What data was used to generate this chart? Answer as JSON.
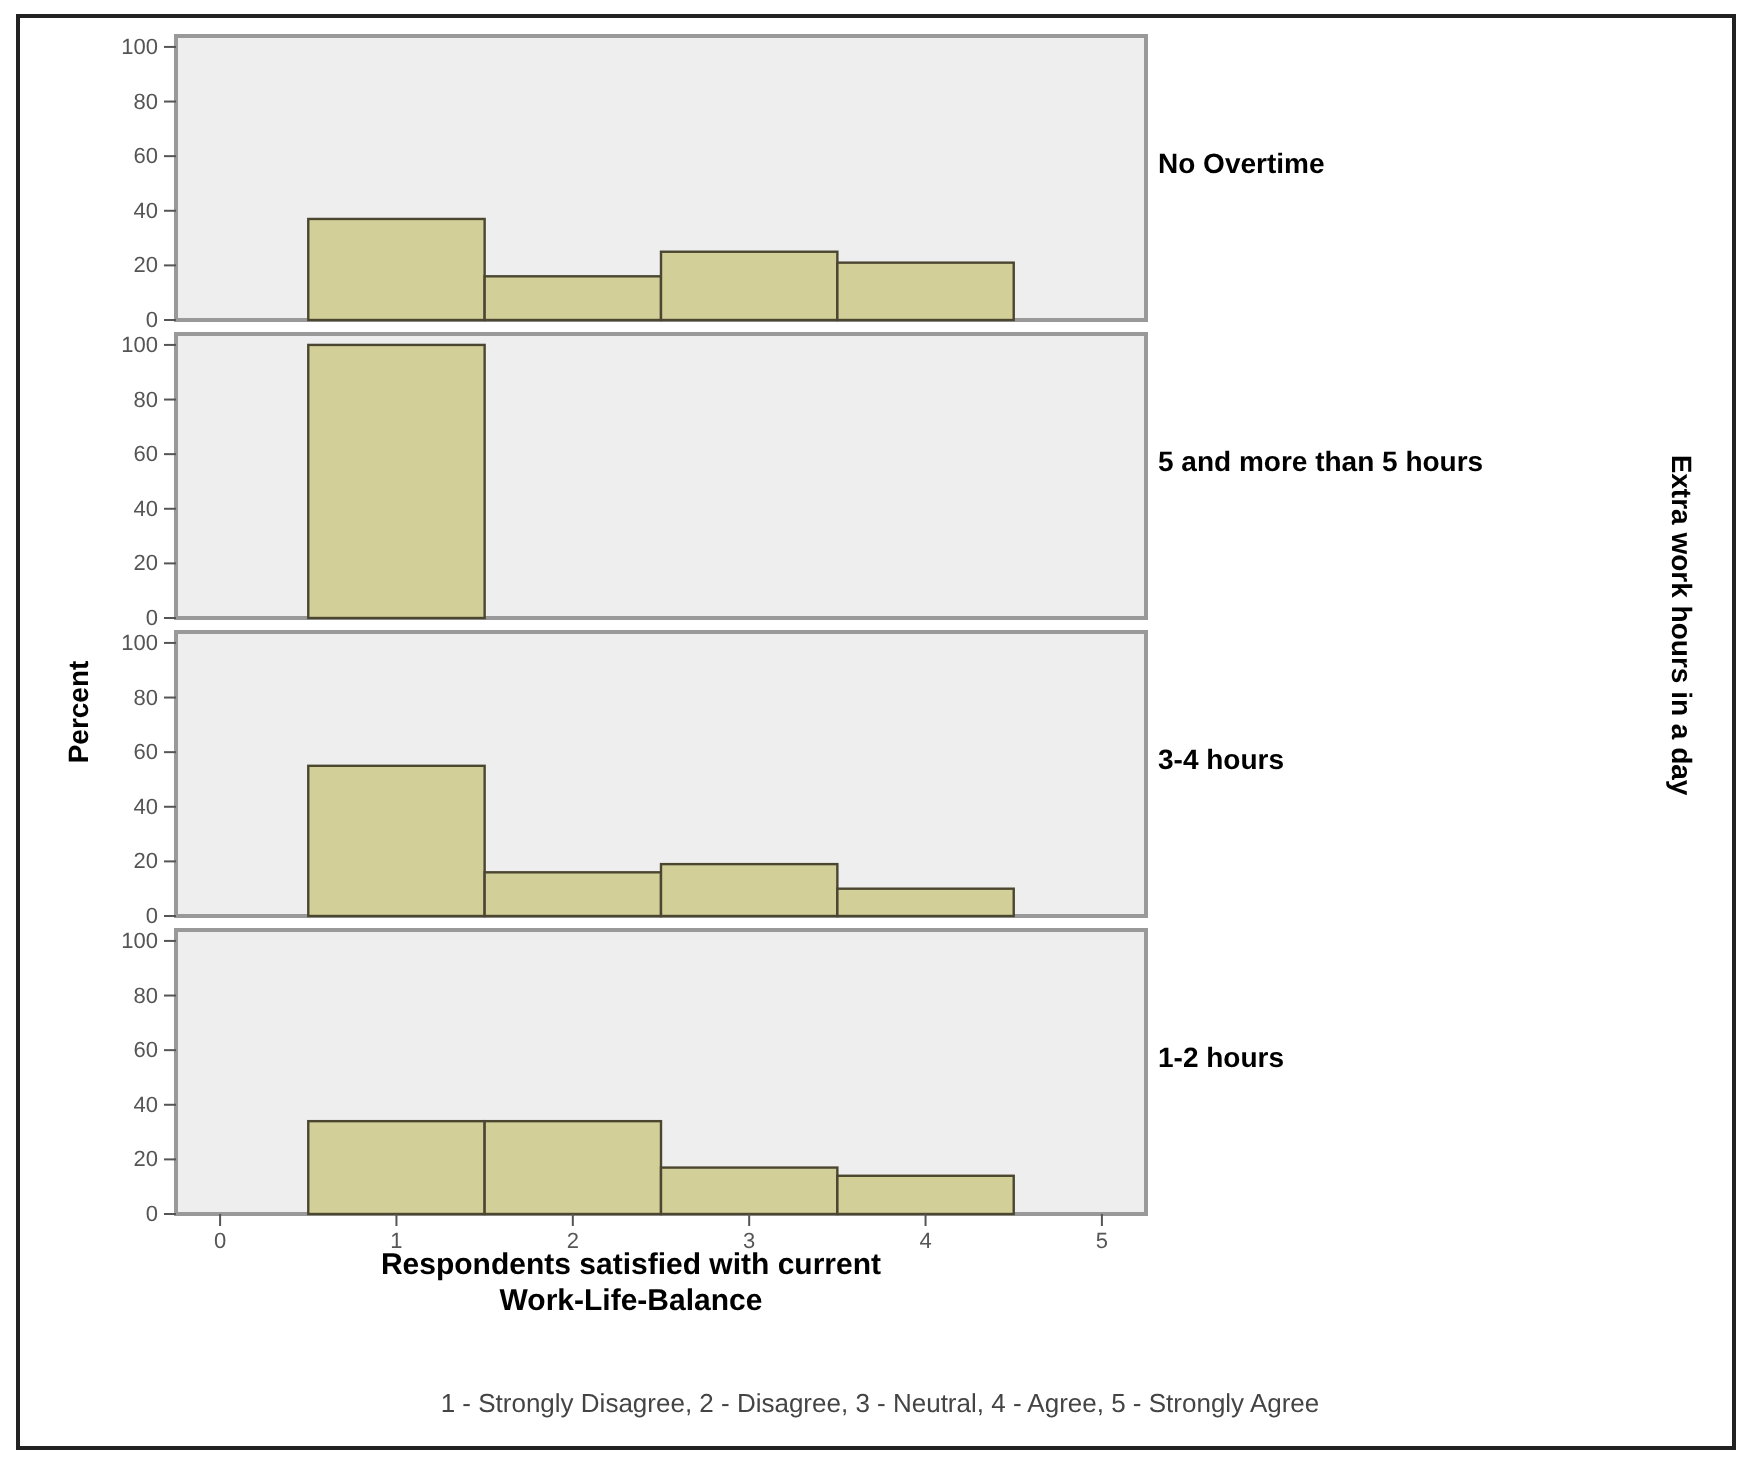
{
  "chart_data": [
    {
      "type": "histogram",
      "title": "No Overtime",
      "bins": [
        0.5,
        1.5,
        2.5,
        3.5,
        4.5
      ],
      "values": [
        37,
        16,
        25,
        21
      ],
      "color": "#d3cf98",
      "xlim": [
        -0.25,
        5.25
      ],
      "ylim": [
        0,
        104
      ],
      "yticks": [
        0,
        20,
        40,
        60,
        80,
        100
      ],
      "tick_labels": "y",
      "grid": false
    },
    {
      "type": "histogram",
      "title": "5 and more than 5 hours",
      "y2label": "Extra work hours in a day",
      "bins": [
        0.5,
        1.5
      ],
      "values": [
        100
      ],
      "color": "#d3cf98",
      "xlim": [
        -0.25,
        5.25
      ],
      "ylim": [
        0,
        104
      ],
      "yticks": [
        0,
        20,
        40,
        60,
        80,
        100
      ],
      "tick_labels": "y",
      "grid": false
    },
    {
      "type": "histogram",
      "title": "3-4 hours",
      "ylabel": "Percent",
      "bins": [
        0.5,
        1.5,
        2.5,
        3.5,
        4.5
      ],
      "values": [
        55,
        16,
        19,
        10
      ],
      "color": "#d3cf98",
      "xlim": [
        -0.25,
        5.25
      ],
      "ylim": [
        0,
        104
      ],
      "yticks": [
        0,
        20,
        40,
        60,
        80,
        100
      ],
      "tick_labels": "y",
      "grid": false
    },
    {
      "type": "histogram",
      "title": "1-2 hours",
      "xlabel": "Respondents satisfied with current Work-Life-Balance",
      "annotations": [
        "1 - Strongly Disagree, 2 - Disagree, 3 - Neutral, 4 - Agree, 5 - Strongly Agree"
      ],
      "bins": [
        0.5,
        1.5,
        2.5,
        3.5,
        4.5
      ],
      "values": [
        34,
        34,
        17,
        14
      ],
      "color": "#d3cf98",
      "xlim": [
        -0.25,
        5.25
      ],
      "xticks": [
        0,
        1,
        2,
        3,
        4,
        5
      ],
      "ylim": [
        0,
        104
      ],
      "yticks": [
        0,
        20,
        40,
        60,
        80,
        100
      ],
      "grid": false
    }
  ]
}
